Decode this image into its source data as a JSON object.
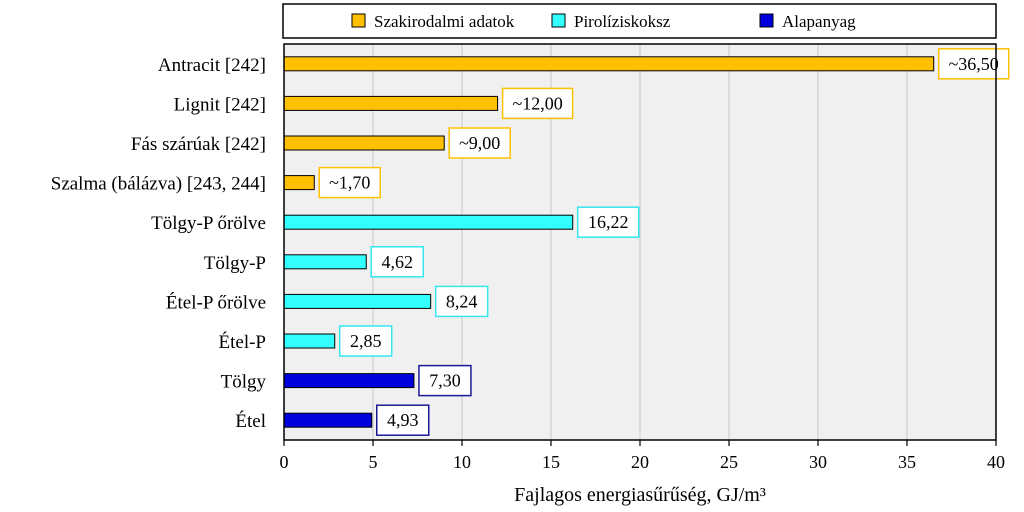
{
  "chart_data": {
    "type": "bar",
    "orientation": "horizontal",
    "title": "",
    "xlabel": "Fajlagos energiasűrűség, GJ/m³",
    "ylabel": "",
    "xlim": [
      0,
      40
    ],
    "xticks": [
      0,
      5,
      10,
      15,
      20,
      25,
      30,
      35,
      40
    ],
    "grid": true,
    "legend_position": "top",
    "legend": [
      {
        "name": "Szakirodalmi adatok",
        "color": "#FFC000"
      },
      {
        "name": "Pirolíziskoksz",
        "color": "#33FFFF"
      },
      {
        "name": "Alapanyag",
        "color": "#0000DD"
      }
    ],
    "bars": [
      {
        "category": "Antracit [242]",
        "value": 36.5,
        "label": "~36,50",
        "series": 0
      },
      {
        "category": "Lignit [242]",
        "value": 12.0,
        "label": "~12,00",
        "series": 0
      },
      {
        "category": "Fás szárúak [242]",
        "value": 9.0,
        "label": "~9,00",
        "series": 0
      },
      {
        "category": "Szalma (bálázva) [243, 244]",
        "value": 1.7,
        "label": "~1,70",
        "series": 0
      },
      {
        "category": "Tölgy-P őrölve",
        "value": 16.22,
        "label": "16,22",
        "series": 1
      },
      {
        "category": "Tölgy-P",
        "value": 4.62,
        "label": "4,62",
        "series": 1
      },
      {
        "category": "Étel-P őrölve",
        "value": 8.24,
        "label": "8,24",
        "series": 1
      },
      {
        "category": "Étel-P",
        "value": 2.85,
        "label": "2,85",
        "series": 1
      },
      {
        "category": "Tölgy",
        "value": 7.3,
        "label": "7,30",
        "series": 2
      },
      {
        "category": "Étel",
        "value": 4.93,
        "label": "4,93",
        "series": 2
      }
    ],
    "label_border_colors": [
      "#FFC000",
      "#33E6F0",
      "#1A1A99"
    ]
  }
}
